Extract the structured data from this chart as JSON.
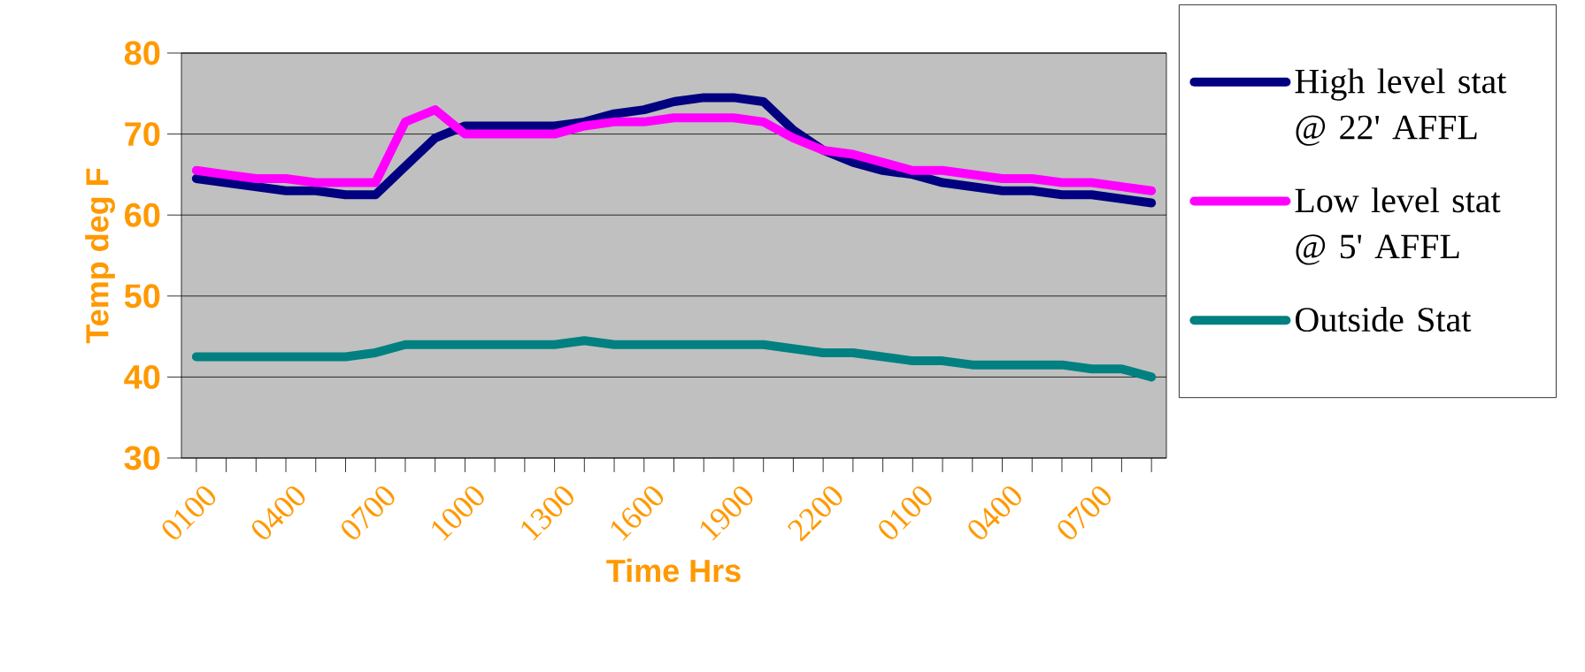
{
  "chart_data": {
    "type": "line",
    "xlabel": "Time Hrs",
    "ylabel": "Temp deg F",
    "categories": [
      "0100",
      null,
      null,
      "0400",
      null,
      null,
      "0700",
      null,
      null,
      "1000",
      null,
      null,
      "1300",
      null,
      null,
      "1600",
      null,
      null,
      "1900",
      null,
      null,
      "2200",
      null,
      null,
      "0100",
      null,
      null,
      "0400",
      null,
      null,
      "0700",
      null,
      null
    ],
    "series": [
      {
        "name": "High level stat @ 22' AFFL",
        "color": "#000080",
        "values": [
          64.5,
          64,
          63.5,
          63,
          63,
          62.5,
          62.5,
          66,
          69.5,
          71,
          71,
          71,
          71,
          71.5,
          72.5,
          73,
          74,
          74.5,
          74.5,
          74,
          70.5,
          68,
          66.5,
          65.5,
          65,
          64,
          63.5,
          63,
          63,
          62.5,
          62.5,
          62,
          61.5
        ]
      },
      {
        "name": "Low level stat @ 5' AFFL",
        "color": "#ff00ff",
        "values": [
          65.5,
          65,
          64.5,
          64.5,
          64,
          64,
          64,
          71.5,
          73,
          70,
          70,
          70,
          70,
          71,
          71.5,
          71.5,
          72,
          72,
          72,
          71.5,
          69.5,
          68,
          67.5,
          66.5,
          65.5,
          65.5,
          65,
          64.5,
          64.5,
          64,
          64,
          63.5,
          63
        ]
      },
      {
        "name": "Outside Stat",
        "color": "#008080",
        "values": [
          42.5,
          42.5,
          42.5,
          42.5,
          42.5,
          42.5,
          43,
          44,
          44,
          44,
          44,
          44,
          44,
          44.5,
          44,
          44,
          44,
          44,
          44,
          44,
          43.5,
          43,
          43,
          42.5,
          42,
          42,
          41.5,
          41.5,
          41.5,
          41.5,
          41,
          41,
          40
        ]
      }
    ],
    "ylim": [
      30,
      80
    ],
    "yticks": [
      30,
      40,
      50,
      60,
      70,
      80
    ],
    "grid": "y",
    "legend": "right",
    "marker": "none",
    "line_style": "solid"
  }
}
